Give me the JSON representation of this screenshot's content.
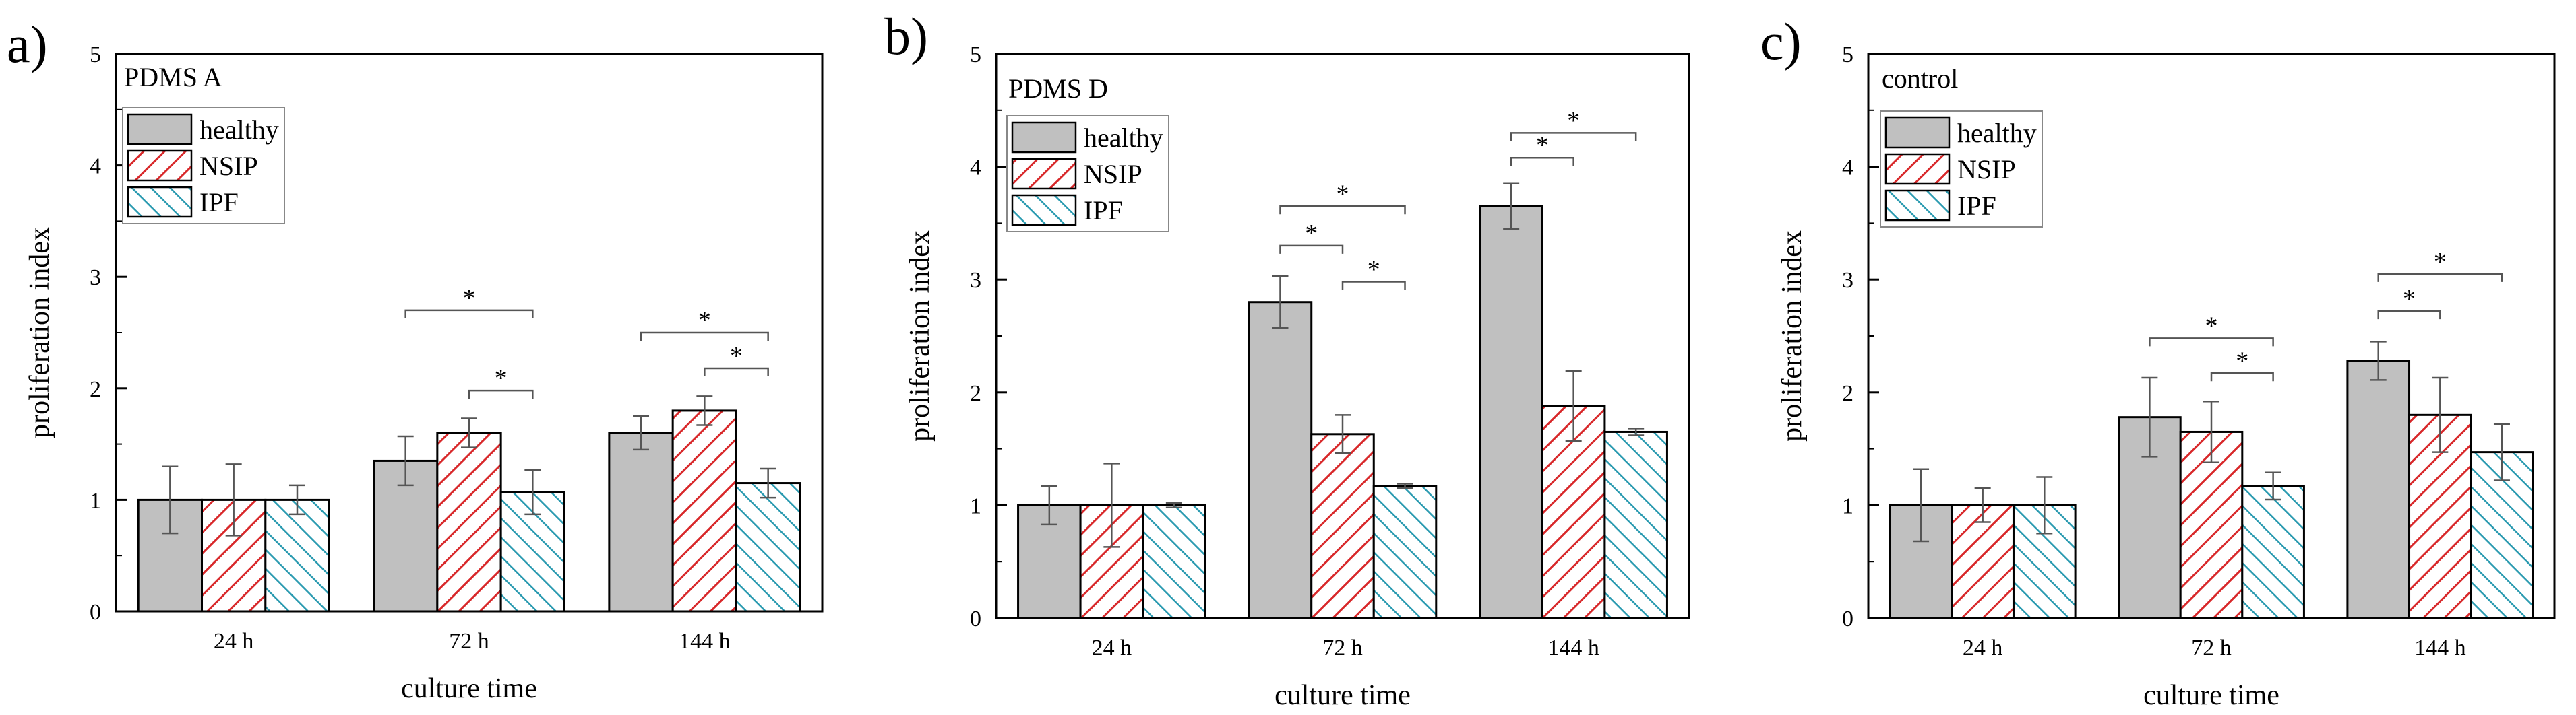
{
  "colors": {
    "healthy_fill": "#c0c0c0",
    "nsip_stroke": "#d8282a",
    "ipf_stroke": "#2a9ab0",
    "axis": "#000000",
    "error": "#555555",
    "bracket": "#555555"
  },
  "chart_data": [
    {
      "type": "bar",
      "panel_label": "a)",
      "title": "PDMS A",
      "xlabel": "culture time",
      "ylabel": "proliferation index",
      "ylim": [
        0,
        5
      ],
      "yticks": [
        "0",
        "1",
        "2",
        "3",
        "4",
        "5"
      ],
      "categories": [
        "24 h",
        "72 h",
        "144 h"
      ],
      "legend": {
        "placement": "top-left",
        "entries": [
          "healthy",
          "NSIP",
          "IPF"
        ]
      },
      "series": [
        {
          "name": "healthy",
          "values": [
            1.0,
            1.35,
            1.6
          ],
          "errors": [
            0.3,
            0.22,
            0.15
          ]
        },
        {
          "name": "NSIP",
          "values": [
            1.0,
            1.6,
            1.8
          ],
          "errors": [
            0.32,
            0.13,
            0.13
          ]
        },
        {
          "name": "IPF",
          "values": [
            1.0,
            1.07,
            1.15
          ],
          "errors": [
            0.13,
            0.2,
            0.13
          ]
        }
      ],
      "significance": [
        {
          "category": 1,
          "from": "healthy",
          "to": "IPF",
          "y": 2.7,
          "label": "*"
        },
        {
          "category": 1,
          "from": "NSIP",
          "to": "IPF",
          "y": 1.98,
          "label": "*"
        },
        {
          "category": 2,
          "from": "healthy",
          "to": "IPF",
          "y": 2.5,
          "label": "*"
        },
        {
          "category": 2,
          "from": "NSIP",
          "to": "IPF",
          "y": 2.18,
          "label": "*"
        }
      ]
    },
    {
      "type": "bar",
      "panel_label": "b)",
      "title": "PDMS D",
      "xlabel": "culture time",
      "ylabel": "proliferation index",
      "ylim": [
        0,
        5
      ],
      "yticks": [
        "0",
        "1",
        "2",
        "3",
        "4",
        "5"
      ],
      "categories": [
        "24 h",
        "72 h",
        "144 h"
      ],
      "legend": {
        "placement": "top-left",
        "entries": [
          "healthy",
          "NSIP",
          "IPF"
        ]
      },
      "series": [
        {
          "name": "healthy",
          "values": [
            1.0,
            2.8,
            3.65
          ],
          "errors": [
            0.17,
            0.23,
            0.2
          ]
        },
        {
          "name": "NSIP",
          "values": [
            1.0,
            1.63,
            1.88
          ],
          "errors": [
            0.37,
            0.17,
            0.31
          ]
        },
        {
          "name": "IPF",
          "values": [
            1.0,
            1.17,
            1.65
          ],
          "errors": [
            0.02,
            0.02,
            0.03
          ]
        }
      ],
      "significance": [
        {
          "category": 1,
          "from": "healthy",
          "to": "IPF",
          "y": 3.65,
          "label": "*"
        },
        {
          "category": 1,
          "from": "healthy",
          "to": "NSIP",
          "y": 3.3,
          "label": "*"
        },
        {
          "category": 1,
          "from": "NSIP",
          "to": "IPF",
          "y": 2.98,
          "label": "*"
        },
        {
          "category": 2,
          "from": "healthy",
          "to": "IPF",
          "y": 4.3,
          "label": "*"
        },
        {
          "category": 2,
          "from": "healthy",
          "to": "NSIP",
          "y": 4.08,
          "label": "*"
        }
      ]
    },
    {
      "type": "bar",
      "panel_label": "c)",
      "title": "control",
      "xlabel": "culture time",
      "ylabel": "proliferation index",
      "ylim": [
        0,
        5
      ],
      "yticks": [
        "0",
        "1",
        "2",
        "3",
        "4",
        "5"
      ],
      "categories": [
        "24 h",
        "72 h",
        "144 h"
      ],
      "legend": {
        "placement": "top-left",
        "entries": [
          "healthy",
          "NSIP",
          "IPF"
        ]
      },
      "series": [
        {
          "name": "healthy",
          "values": [
            1.0,
            1.78,
            2.28
          ],
          "errors": [
            0.32,
            0.35,
            0.17
          ]
        },
        {
          "name": "NSIP",
          "values": [
            1.0,
            1.65,
            1.8
          ],
          "errors": [
            0.15,
            0.27,
            0.33
          ]
        },
        {
          "name": "IPF",
          "values": [
            1.0,
            1.17,
            1.47
          ],
          "errors": [
            0.25,
            0.12,
            0.25
          ]
        }
      ],
      "significance": [
        {
          "category": 1,
          "from": "healthy",
          "to": "IPF",
          "y": 2.48,
          "label": "*"
        },
        {
          "category": 1,
          "from": "NSIP",
          "to": "IPF",
          "y": 2.17,
          "label": "*"
        },
        {
          "category": 2,
          "from": "healthy",
          "to": "IPF",
          "y": 3.05,
          "label": "*"
        },
        {
          "category": 2,
          "from": "healthy",
          "to": "NSIP",
          "y": 2.72,
          "label": "*"
        }
      ]
    }
  ]
}
